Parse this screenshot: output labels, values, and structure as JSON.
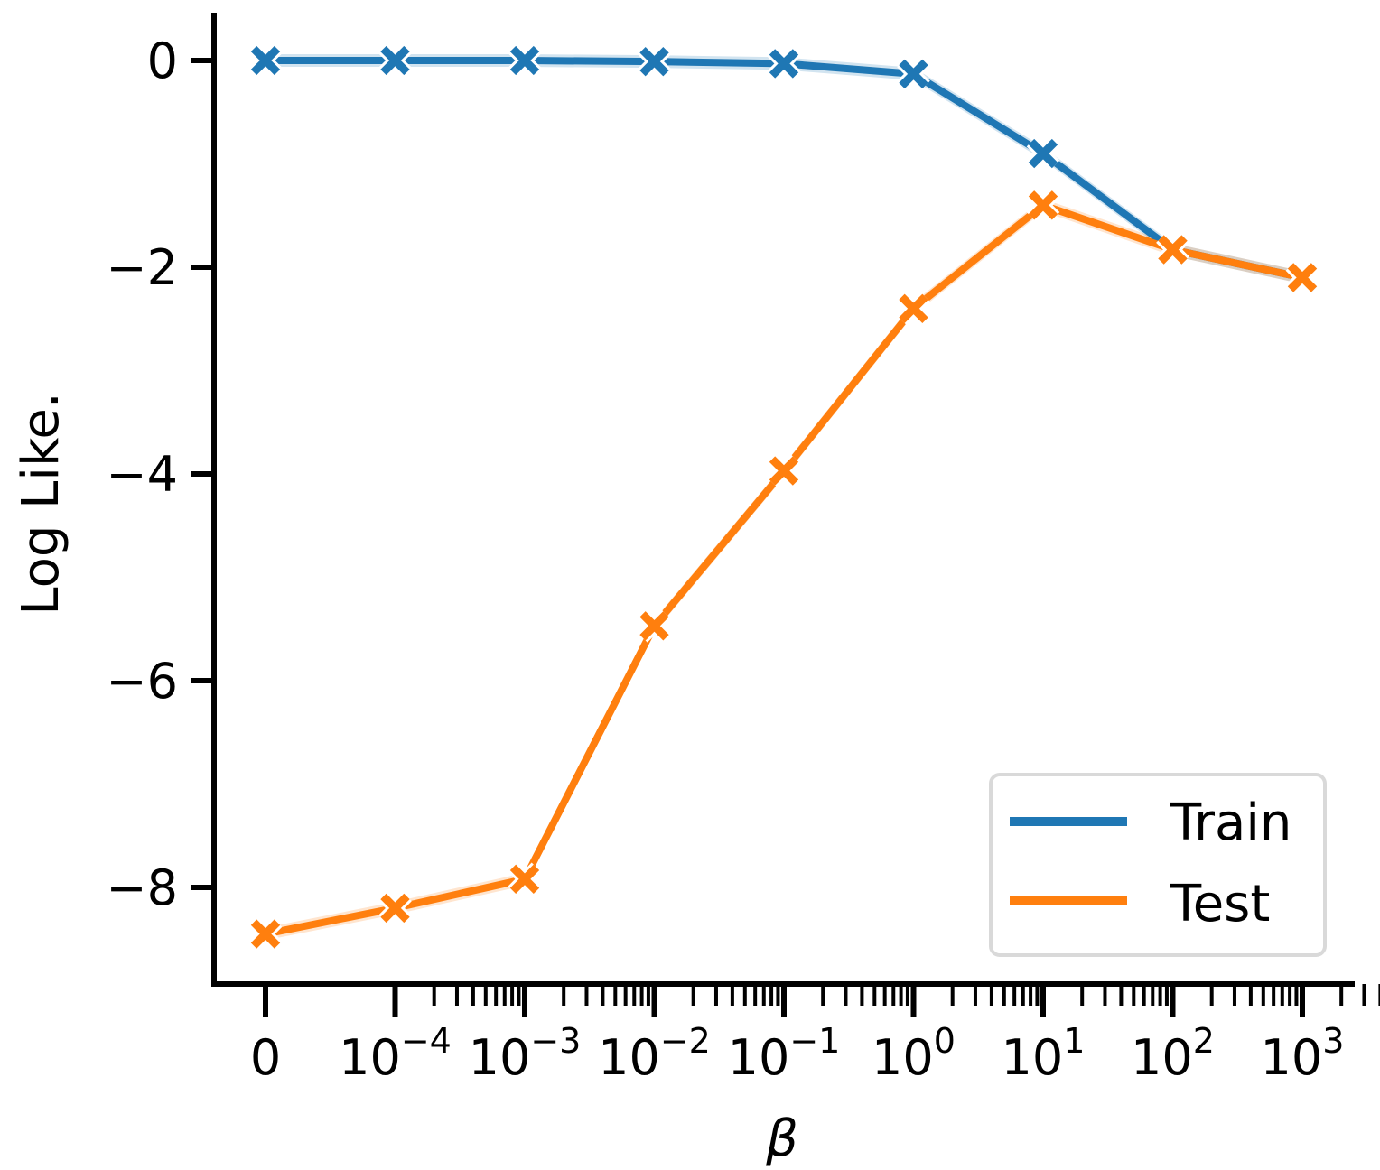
{
  "chart_data": {
    "type": "line",
    "title": "",
    "xlabel": "β",
    "ylabel": "Log Like.",
    "x_scale": "symlog",
    "categories": [
      "0",
      "10^-4",
      "10^-3",
      "10^-2",
      "10^-1",
      "10^0",
      "10^1",
      "10^2",
      "10^3"
    ],
    "x_values": [
      0,
      0.0001,
      0.001,
      0.01,
      0.1,
      1,
      10,
      100,
      1000
    ],
    "x_tick_labels": [
      {
        "base": "0",
        "exp": ""
      },
      {
        "base": "10",
        "exp": "−4"
      },
      {
        "base": "10",
        "exp": "−3"
      },
      {
        "base": "10",
        "exp": "−2"
      },
      {
        "base": "10",
        "exp": "−1"
      },
      {
        "base": "10",
        "exp": "0"
      },
      {
        "base": "10",
        "exp": "1"
      },
      {
        "base": "10",
        "exp": "2"
      },
      {
        "base": "10",
        "exp": "3"
      }
    ],
    "y_ticks": [
      0,
      -2,
      -4,
      -6,
      -8
    ],
    "y_tick_labels": [
      "0",
      "−2",
      "−4",
      "−6",
      "−8"
    ],
    "ylim": [
      -9.35,
      0.45
    ],
    "grid": false,
    "legend_position": "bottom-right",
    "series": [
      {
        "name": "Train",
        "color": "#1f77b4",
        "marker": "x",
        "values": [
          0.0,
          0.0,
          0.0,
          -0.01,
          -0.03,
          -0.13,
          -0.9,
          -1.83,
          -2.1
        ]
      },
      {
        "name": "Test",
        "color": "#ff7f0e",
        "marker": "x",
        "values": [
          -8.45,
          -8.2,
          -7.92,
          -5.47,
          -3.97,
          -2.4,
          -1.4,
          -1.83,
          -2.1
        ]
      }
    ]
  }
}
